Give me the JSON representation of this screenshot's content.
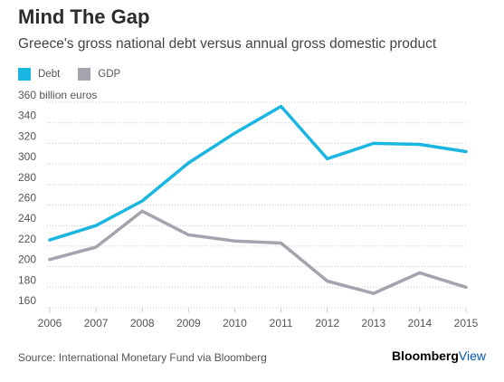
{
  "title": "Mind The Gap",
  "subtitle": "Greece's gross national debt versus annual gross domestic product",
  "source": "Source: International Monetary Fund via Bloomberg",
  "brand": {
    "part1": "Bloomberg",
    "part2": "View"
  },
  "colors": {
    "debt": "#1ab6e2",
    "gdp": "#a5a3ad",
    "grid": "#c8c8c8",
    "brand_blue": "#0057b8"
  },
  "chart_data": {
    "type": "line",
    "title": "Mind The Gap",
    "subtitle": "Greece's gross national debt versus annual gross domestic product",
    "xlabel": "",
    "ylabel": "",
    "y_unit_label": "360 billion euros",
    "x": [
      "2006",
      "2007",
      "2008",
      "2009",
      "2010",
      "2011",
      "2012",
      "2013",
      "2014",
      "2015"
    ],
    "ylim": [
      160,
      360
    ],
    "yticks": [
      160,
      180,
      200,
      220,
      240,
      260,
      280,
      300,
      320,
      340,
      360
    ],
    "ytick_labels": [
      "160",
      "180",
      "200",
      "220",
      "240",
      "260",
      "280",
      "300",
      "320",
      "340",
      "360 billion euros"
    ],
    "grid": "horizontal dotted",
    "legend_position": "top-left",
    "series": [
      {
        "name": "Debt",
        "color": "#1ab6e2",
        "values": [
          226,
          240,
          264,
          301,
          330,
          356,
          305,
          320,
          319,
          312
        ]
      },
      {
        "name": "GDP",
        "color": "#a5a3ad",
        "values": [
          207,
          219,
          254,
          231,
          225,
          223,
          186,
          174,
          194,
          180
        ]
      }
    ]
  }
}
